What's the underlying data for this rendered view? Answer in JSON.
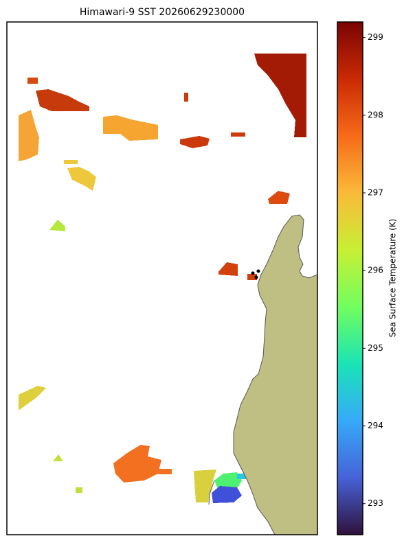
{
  "chart_data": {
    "type": "map",
    "title": "Himawari-9 SST 20260629230000",
    "colorbar": {
      "label": "Sea Surface Temperature (K)",
      "colormap": "turbo",
      "lim": [
        292.6,
        299.2
      ],
      "ticks": [
        293,
        294,
        295,
        296,
        297,
        298,
        299
      ]
    }
  }
}
